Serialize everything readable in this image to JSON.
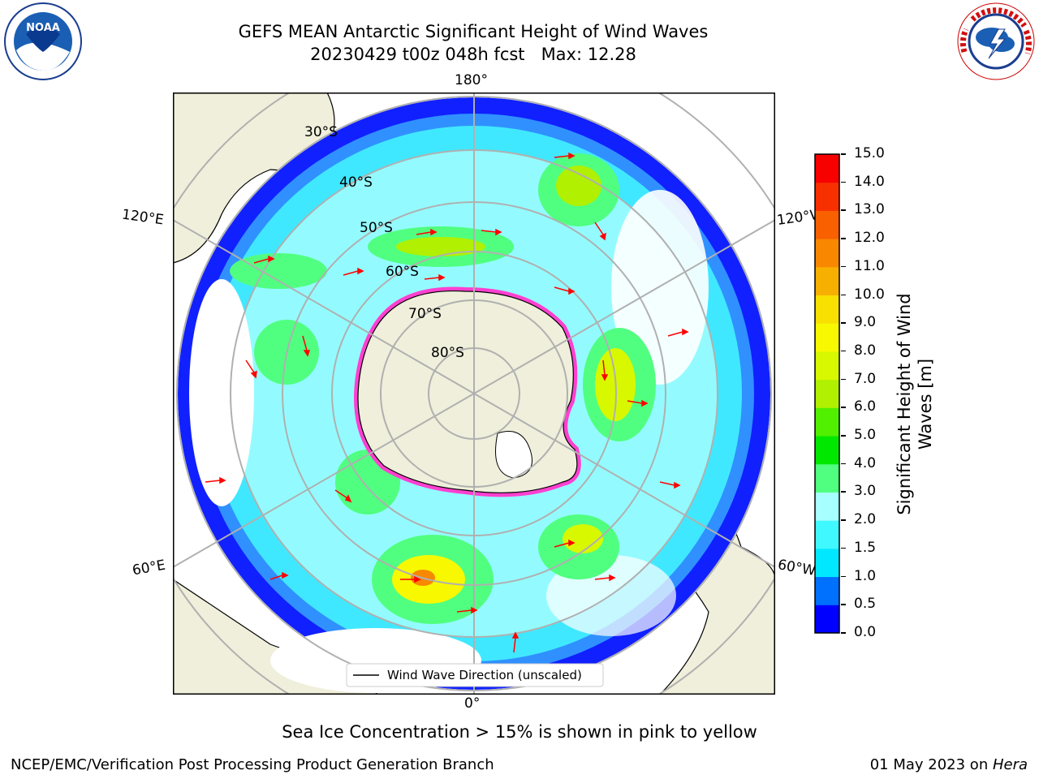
{
  "title_line1": "GEFS MEAN Antarctic Significant Height of Wind Waves",
  "title_line2": "20230429 t00z 048h fcst   Max: 12.28",
  "logos": {
    "left": {
      "name": "noaa-logo",
      "text": "NOAA",
      "ring_text": "NATIONAL OCEANIC AND ATMOSPHERIC ADMINISTRATION · U.S. DEPARTMENT OF COMMERCE"
    },
    "right": {
      "name": "nws-logo",
      "ring_text": "NATIONAL WEATHER SERVICE"
    }
  },
  "map": {
    "projection": "south polar stereographic",
    "lon_labels": {
      "top": "180°",
      "bottom": "0°",
      "upper_left": "120°E",
      "lower_left": "60°E",
      "upper_right": "120°W",
      "lower_right": "60°W"
    },
    "lat_labels": [
      "30°S",
      "40°S",
      "50°S",
      "60°S",
      "70°S",
      "80°S"
    ],
    "legend": "Wind Wave Direction (unscaled)"
  },
  "colorbar": {
    "label": "Significant Height of Wind Waves [m]",
    "ticks": [
      "0.0",
      "0.5",
      "1.0",
      "1.5",
      "2.0",
      "3.0",
      "4.0",
      "5.0",
      "6.0",
      "7.0",
      "8.0",
      "9.0",
      "10.0",
      "11.0",
      "12.0",
      "13.0",
      "14.0",
      "15.0"
    ],
    "colors": [
      "#0000ff",
      "#0070ff",
      "#00e8ff",
      "#40f8ff",
      "#a8ffff",
      "#50ff80",
      "#00e800",
      "#50f000",
      "#b0f000",
      "#d8f800",
      "#f8f800",
      "#f8e000",
      "#f8b000",
      "#f88800",
      "#f86000",
      "#f83000",
      "#f80000"
    ]
  },
  "caption": "Sea Ice Concentration > 15% is shown in pink to yellow",
  "footer_left": "NCEP/EMC/Verification Post Processing Product Generation Branch",
  "footer_right_date": "01 May 2023 on ",
  "footer_right_machine": "Hera"
}
